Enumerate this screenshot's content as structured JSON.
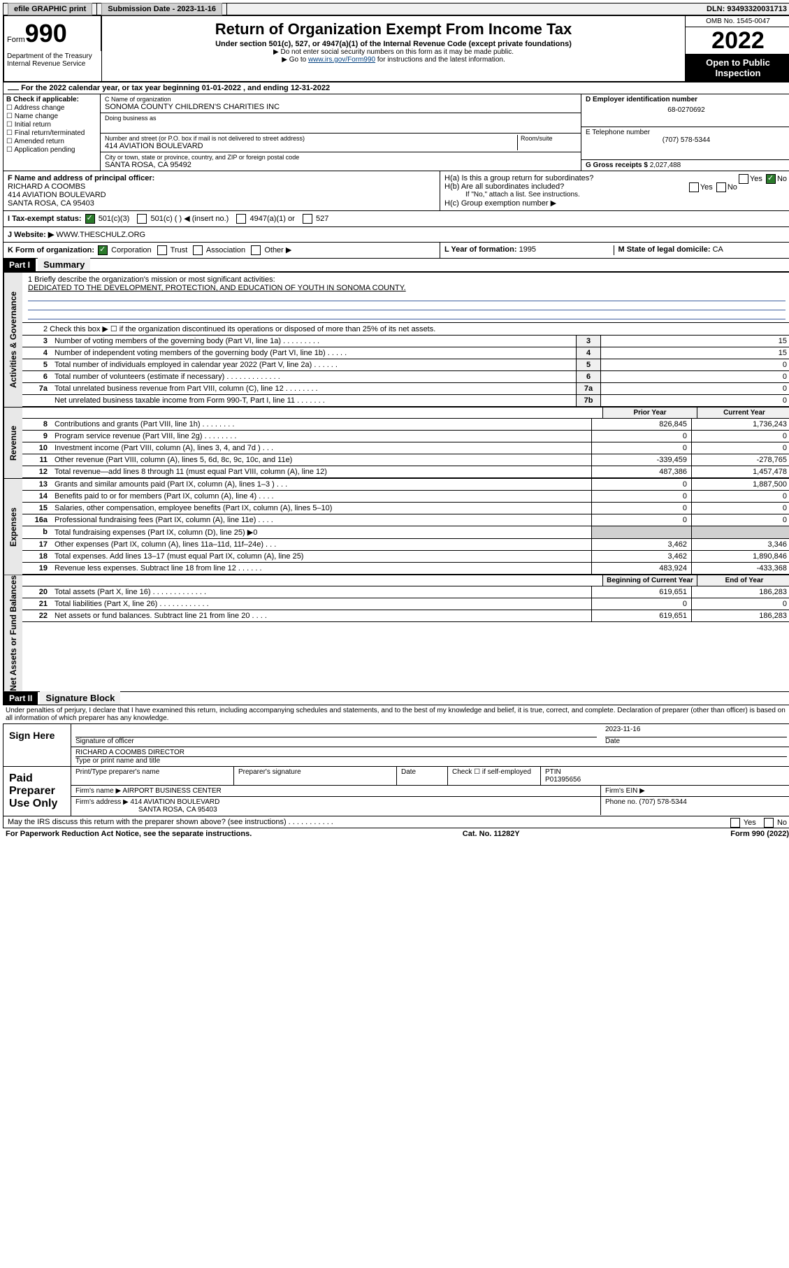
{
  "topbar": {
    "efile": "efile GRAPHIC print",
    "submission_label": "Submission Date - 2023-11-16",
    "dln": "DLN: 93493320031713"
  },
  "header": {
    "form_word": "Form",
    "form_num": "990",
    "title": "Return of Organization Exempt From Income Tax",
    "subtitle": "Under section 501(c), 527, or 4947(a)(1) of the Internal Revenue Code (except private foundations)",
    "note1": "▶ Do not enter social security numbers on this form as it may be made public.",
    "note2_prefix": "▶ Go to ",
    "note2_link": "www.irs.gov/Form990",
    "note2_suffix": " for instructions and the latest information.",
    "omb": "OMB No. 1545-0047",
    "year": "2022",
    "inspection": "Open to Public Inspection",
    "dept": "Department of the Treasury Internal Revenue Service"
  },
  "period": {
    "text": "For the 2022 calendar year, or tax year beginning 01-01-2022   , and ending 12-31-2022"
  },
  "section_b": {
    "heading": "B Check if applicable:",
    "opts": [
      "Address change",
      "Name change",
      "Initial return",
      "Final return/terminated",
      "Amended return",
      "Application pending"
    ]
  },
  "section_c": {
    "name_label": "C Name of organization",
    "name": "SONOMA COUNTY CHILDREN'S CHARITIES INC",
    "dba_label": "Doing business as",
    "dba": "",
    "addr_label": "Number and street (or P.O. box if mail is not delivered to street address)",
    "room_label": "Room/suite",
    "addr": "414 AVIATION BOULEVARD",
    "city_label": "City or town, state or province, country, and ZIP or foreign postal code",
    "city": "SANTA ROSA, CA  95492"
  },
  "section_d": {
    "label": "D Employer identification number",
    "value": "68-0270692"
  },
  "section_e": {
    "label": "E Telephone number",
    "value": "(707) 578-5344"
  },
  "section_g": {
    "label": "G Gross receipts $",
    "value": "2,027,488"
  },
  "section_f": {
    "label": "F  Name and address of principal officer:",
    "name": "RICHARD A COOMBS",
    "addr1": "414 AVIATION BOULEVARD",
    "addr2": "SANTA ROSA, CA  95403"
  },
  "section_h": {
    "ha": "H(a)  Is this a group return for subordinates?",
    "hb": "H(b)  Are all subordinates included?",
    "hb_note": "If \"No,\" attach a list. See instructions.",
    "hc": "H(c)  Group exemption number ▶",
    "yes": "Yes",
    "no": "No"
  },
  "section_i": {
    "label": "I     Tax-exempt status:",
    "opt1": "501(c)(3)",
    "opt2": "501(c) (  ) ◀ (insert no.)",
    "opt3": "4947(a)(1) or",
    "opt4": "527"
  },
  "section_j": {
    "label": "J     Website: ▶",
    "value": "WWW.THESCHULZ.ORG"
  },
  "section_k": {
    "label": "K Form of organization:",
    "opts": [
      "Corporation",
      "Trust",
      "Association",
      "Other ▶"
    ]
  },
  "section_l": {
    "label": "L Year of formation:",
    "value": "1995"
  },
  "section_m": {
    "label": "M State of legal domicile:",
    "value": "CA"
  },
  "part1": {
    "header": "Part I",
    "title": "Summary",
    "side_gov": "Activities & Governance",
    "side_rev": "Revenue",
    "side_exp": "Expenses",
    "side_net": "Net Assets or Fund Balances",
    "line1_label": "1   Briefly describe the organization's mission or most significant activities:",
    "line1_text": "DEDICATED TO THE DEVELOPMENT, PROTECTION, AND EDUCATION OF YOUTH IN SONOMA COUNTY.",
    "line2": "2    Check this box ▶ ☐  if the organization discontinued its operations or disposed of more than 25% of its net assets.",
    "prior_year": "Prior Year",
    "current_year": "Current Year",
    "begin_year": "Beginning of Current Year",
    "end_year": "End of Year",
    "lines_single": [
      {
        "n": "3",
        "d": "Number of voting members of the governing body (Part VI, line 1a)   .    .    .    .    .    .    .    .    .",
        "b": "3",
        "v": "15"
      },
      {
        "n": "4",
        "d": "Number of independent voting members of the governing body (Part VI, line 1b)  .    .    .    .    .",
        "b": "4",
        "v": "15"
      },
      {
        "n": "5",
        "d": "Total number of individuals employed in calendar year 2022 (Part V, line 2a)   .    .    .    .    .    .",
        "b": "5",
        "v": "0"
      },
      {
        "n": "6",
        "d": "Total number of volunteers (estimate if necessary)   .    .    .    .    .    .    .    .    .    .    .    .    .",
        "b": "6",
        "v": "0"
      },
      {
        "n": "7a",
        "d": "Total unrelated business revenue from Part VIII, column (C), line 12  .    .    .    .    .    .    .    .",
        "b": "7a",
        "v": "0"
      },
      {
        "n": "",
        "d": "Net unrelated business taxable income from Form 990-T, Part I, line 11   .    .    .    .    .    .    .",
        "b": "7b",
        "v": "0"
      }
    ],
    "lines_revenue": [
      {
        "n": "8",
        "d": "Contributions and grants (Part VIII, line 1h)   .    .    .    .    .    .    .    .",
        "p": "826,845",
        "c": "1,736,243"
      },
      {
        "n": "9",
        "d": "Program service revenue (Part VIII, line 2g)   .    .    .    .    .    .    .    .",
        "p": "0",
        "c": "0"
      },
      {
        "n": "10",
        "d": "Investment income (Part VIII, column (A), lines 3, 4, and 7d )   .    .    .",
        "p": "0",
        "c": "0"
      },
      {
        "n": "11",
        "d": "Other revenue (Part VIII, column (A), lines 5, 6d, 8c, 9c, 10c, and 11e)",
        "p": "-339,459",
        "c": "-278,765"
      },
      {
        "n": "12",
        "d": "Total revenue—add lines 8 through 11 (must equal Part VIII, column (A), line 12)",
        "p": "487,386",
        "c": "1,457,478"
      }
    ],
    "lines_expenses": [
      {
        "n": "13",
        "d": "Grants and similar amounts paid (Part IX, column (A), lines 1–3 )  .    .    .",
        "p": "0",
        "c": "1,887,500"
      },
      {
        "n": "14",
        "d": "Benefits paid to or for members (Part IX, column (A), line 4)  .    .    .    .",
        "p": "0",
        "c": "0"
      },
      {
        "n": "15",
        "d": "Salaries, other compensation, employee benefits (Part IX, column (A), lines 5–10)",
        "p": "0",
        "c": "0"
      },
      {
        "n": "16a",
        "d": "Professional fundraising fees (Part IX, column (A), line 11e)   .    .    .    .",
        "p": "0",
        "c": "0"
      },
      {
        "n": "b",
        "d": "Total fundraising expenses (Part IX, column (D), line 25) ▶0",
        "p": "",
        "c": ""
      },
      {
        "n": "17",
        "d": "Other expenses (Part IX, column (A), lines 11a–11d, 11f–24e)  .    .    .",
        "p": "3,462",
        "c": "3,346"
      },
      {
        "n": "18",
        "d": "Total expenses. Add lines 13–17 (must equal Part IX, column (A), line 25)",
        "p": "3,462",
        "c": "1,890,846"
      },
      {
        "n": "19",
        "d": "Revenue less expenses. Subtract line 18 from line 12  .    .    .    .    .    .",
        "p": "483,924",
        "c": "-433,368"
      }
    ],
    "lines_net": [
      {
        "n": "20",
        "d": "Total assets (Part X, line 16)  .    .    .    .    .    .    .    .    .    .    .    .    .",
        "p": "619,651",
        "c": "186,283"
      },
      {
        "n": "21",
        "d": "Total liabilities (Part X, line 26)   .    .    .    .    .    .    .    .    .    .    .    .",
        "p": "0",
        "c": "0"
      },
      {
        "n": "22",
        "d": "Net assets or fund balances. Subtract line 21 from line 20  .    .    .    .",
        "p": "619,651",
        "c": "186,283"
      }
    ]
  },
  "part2": {
    "header": "Part II",
    "title": "Signature Block",
    "penalty": "Under penalties of perjury, I declare that I have examined this return, including accompanying schedules and statements, and to the best of my knowledge and belief, it is true, correct, and complete. Declaration of preparer (other than officer) is based on all information of which preparer has any knowledge.",
    "sign_here": "Sign Here",
    "sig_officer": "Signature of officer",
    "date_label": "Date",
    "sig_date": "2023-11-16",
    "officer_name": "RICHARD A COOMBS DIRECTOR",
    "type_name": "Type or print name and title",
    "paid_label": "Paid Preparer Use Only",
    "prep_name_label": "Print/Type preparer's name",
    "prep_sig_label": "Preparer's signature",
    "check_self": "Check ☐ if self-employed",
    "ptin_label": "PTIN",
    "ptin": "P01395656",
    "firm_name_label": "Firm's name    ▶",
    "firm_name": "AIRPORT BUSINESS CENTER",
    "firm_ein_label": "Firm's EIN ▶",
    "firm_addr_label": "Firm's address ▶",
    "firm_addr1": "414 AVIATION BOULEVARD",
    "firm_addr2": "SANTA ROSA, CA  95403",
    "phone_label": "Phone no.",
    "phone": "(707) 578-5344",
    "discuss": "May the IRS discuss this return with the preparer shown above? (see instructions)   .    .    .    .    .    .    .    .    .    .    .",
    "yes": "Yes",
    "no": "No"
  },
  "footer": {
    "left": "For Paperwork Reduction Act Notice, see the separate instructions.",
    "mid": "Cat. No. 11282Y",
    "right": "Form 990 (2022)"
  }
}
